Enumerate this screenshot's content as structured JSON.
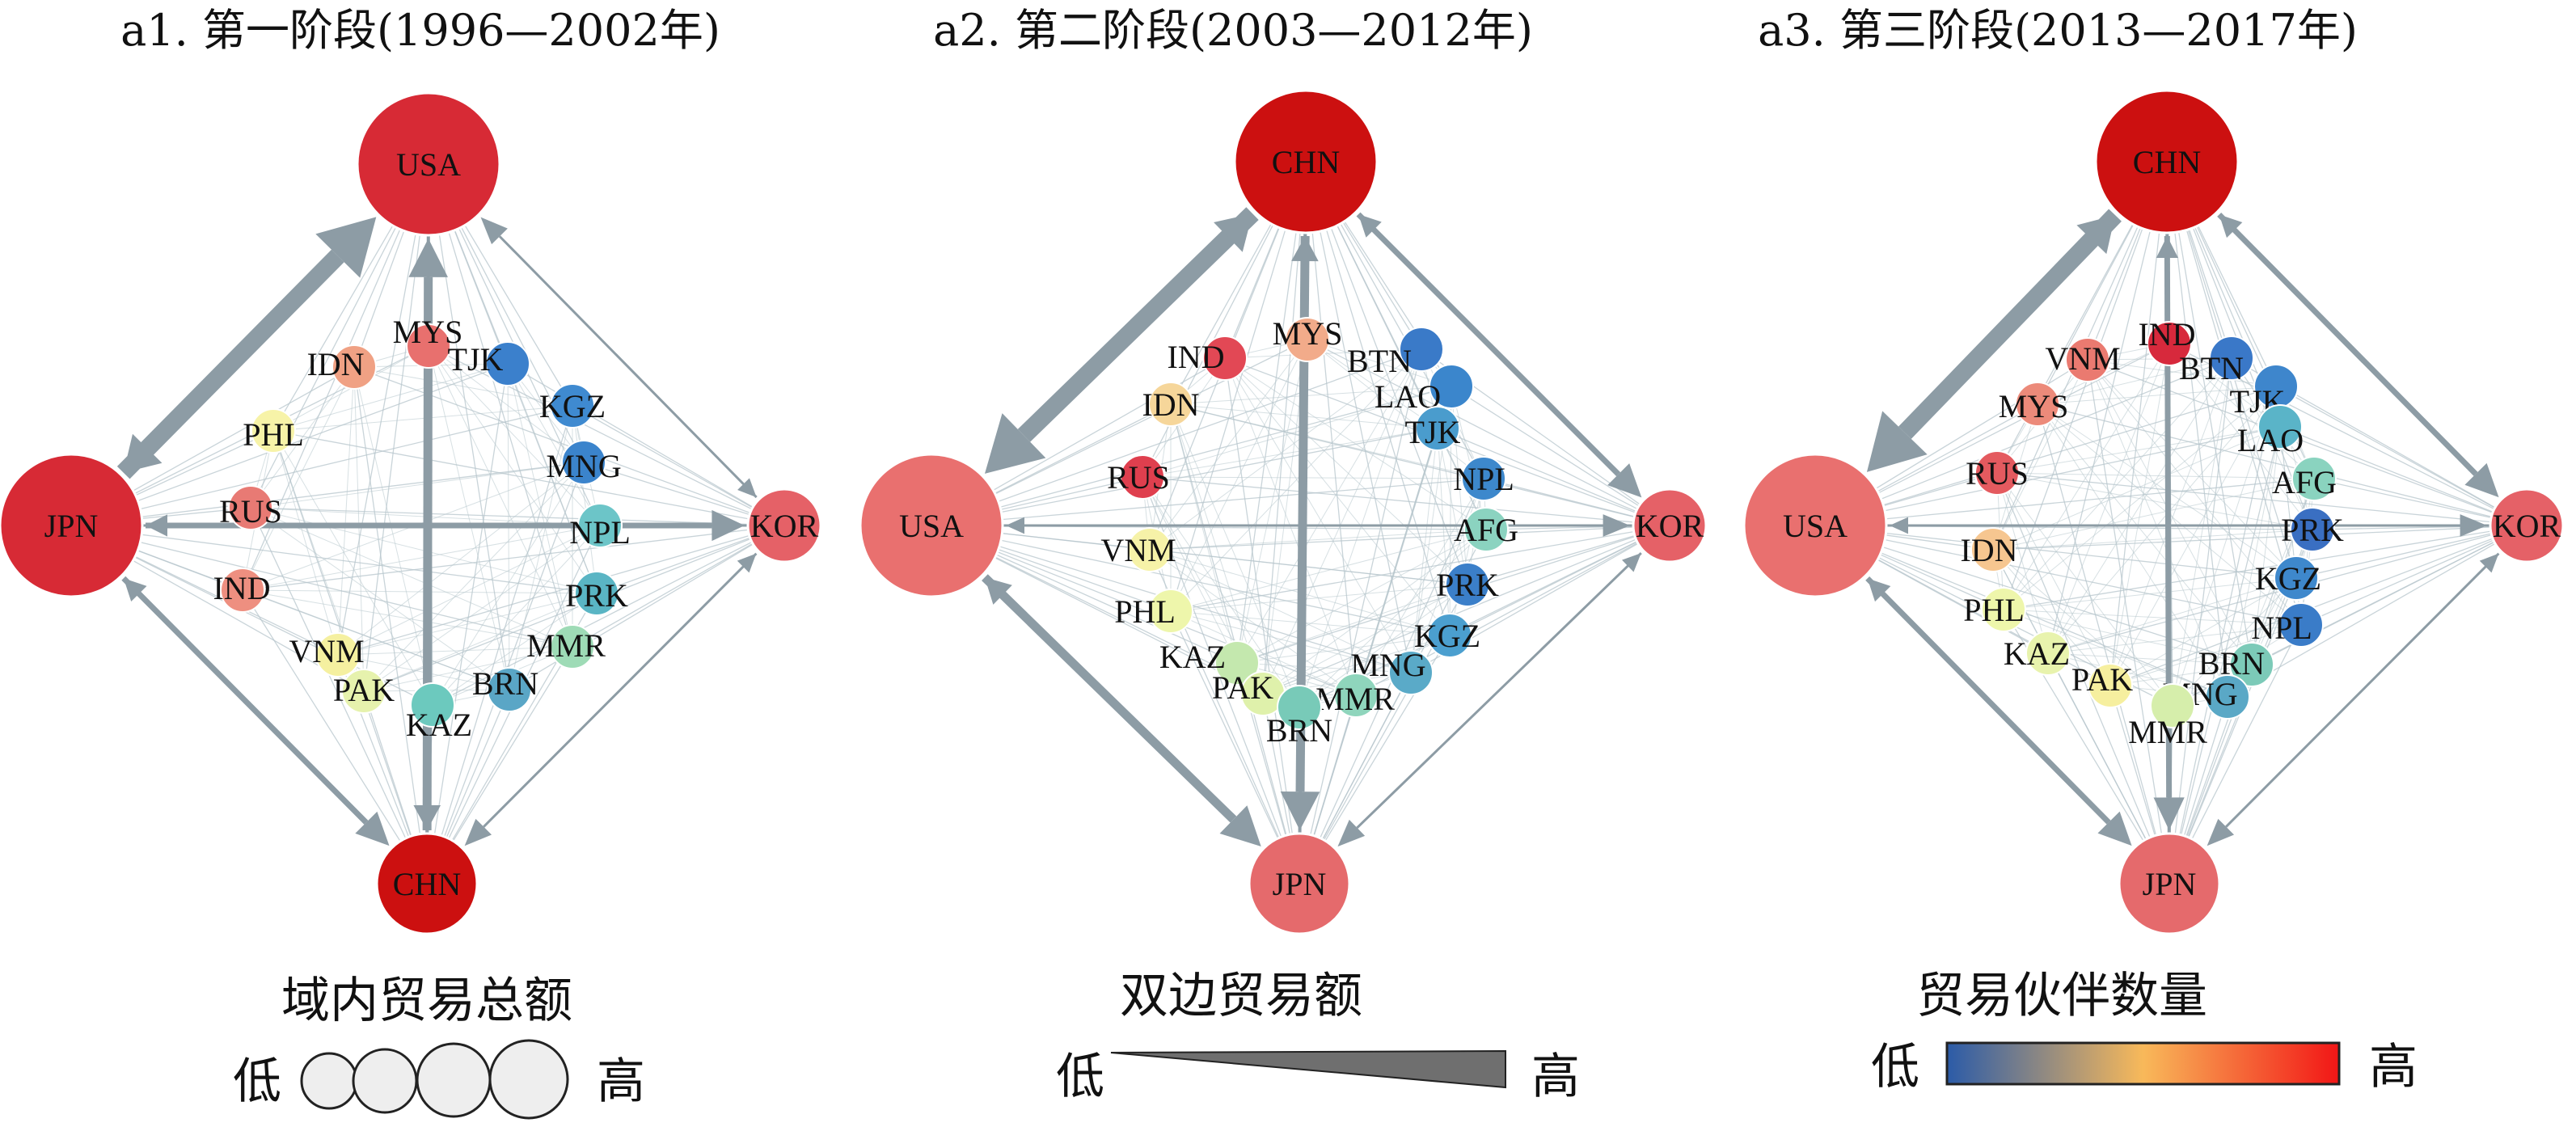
{
  "panels": [
    {
      "title": "a1. 第一阶段(1996—2002年)",
      "corners": [
        {
          "code": "USA",
          "pos": "top",
          "color": "#d72a35",
          "size": 4
        },
        {
          "code": "JPN",
          "pos": "left",
          "color": "#d72a35",
          "size": 4
        },
        {
          "code": "KOR",
          "pos": "right",
          "color": "#e56167",
          "size": 2
        },
        {
          "code": "CHN",
          "pos": "bottom",
          "color": "#cc1010",
          "size": 3
        }
      ],
      "arrows": [
        {
          "from": "JPN",
          "to": "USA",
          "weight": 5
        },
        {
          "from": "CHN",
          "to": "USA",
          "weight": 3
        },
        {
          "from": "JPN",
          "to": "CHN",
          "weight": 2
        },
        {
          "from": "JPN",
          "to": "KOR",
          "weight": 2
        },
        {
          "from": "KOR",
          "to": "USA",
          "weight": 1
        },
        {
          "from": "KOR",
          "to": "CHN",
          "weight": 1
        }
      ],
      "inner": [
        {
          "code": "MYS",
          "color": "#e8706e"
        },
        {
          "code": "IDN",
          "color": "#f0a184"
        },
        {
          "code": "TJK",
          "color": "#3b80cc"
        },
        {
          "code": "PHL",
          "color": "#f7f3a8"
        },
        {
          "code": "KGZ",
          "color": "#3f8ad0"
        },
        {
          "code": "MNG",
          "color": "#3b84cc"
        },
        {
          "code": "RUS",
          "color": "#e87a74"
        },
        {
          "code": "NPL",
          "color": "#6cc5c8"
        },
        {
          "code": "IND",
          "color": "#ee8f80"
        },
        {
          "code": "PRK",
          "color": "#5ab5c4"
        },
        {
          "code": "VNM",
          "color": "#f5f0a0"
        },
        {
          "code": "MMR",
          "color": "#9edbb6"
        },
        {
          "code": "PAK",
          "color": "#e6f2ad"
        },
        {
          "code": "BRN",
          "color": "#5aa6c6"
        },
        {
          "code": "KAZ",
          "color": "#6cc9be"
        }
      ]
    },
    {
      "title": "a2. 第二阶段(2003—2012年)",
      "corners": [
        {
          "code": "CHN",
          "pos": "top",
          "color": "#cc1010",
          "size": 4
        },
        {
          "code": "USA",
          "pos": "left",
          "color": "#e9706f",
          "size": 4
        },
        {
          "code": "KOR",
          "pos": "right",
          "color": "#e56167",
          "size": 2
        },
        {
          "code": "JPN",
          "pos": "bottom",
          "color": "#e56a6c",
          "size": 3
        }
      ],
      "arrows": [
        {
          "from": "CHN",
          "to": "USA",
          "weight": 5
        },
        {
          "from": "CHN",
          "to": "JPN",
          "weight": 3
        },
        {
          "from": "USA",
          "to": "JPN",
          "weight": 3
        },
        {
          "from": "CHN",
          "to": "KOR",
          "weight": 2
        },
        {
          "from": "USA",
          "to": "KOR",
          "weight": 1
        },
        {
          "from": "KOR",
          "to": "JPN",
          "weight": 1
        }
      ],
      "inner": [
        {
          "code": "MYS",
          "color": "#f2ab8a"
        },
        {
          "code": "IND",
          "color": "#e24855"
        },
        {
          "code": "BTN",
          "color": "#3a7ac8"
        },
        {
          "code": "LAO",
          "color": "#3b86cc"
        },
        {
          "code": "IDN",
          "color": "#f6d69a"
        },
        {
          "code": "TJK",
          "color": "#4a9ccd"
        },
        {
          "code": "RUS",
          "color": "#df3f4e"
        },
        {
          "code": "NPL",
          "color": "#3d88cc"
        },
        {
          "code": "AFG",
          "color": "#8bd3c0"
        },
        {
          "code": "VNM",
          "color": "#f6f2a8"
        },
        {
          "code": "PRK",
          "color": "#3b7fc9"
        },
        {
          "code": "PHL",
          "color": "#eef6ab"
        },
        {
          "code": "KGZ",
          "color": "#4b9fcf"
        },
        {
          "code": "KAZ",
          "color": "#c4e8ae"
        },
        {
          "code": "MNG",
          "color": "#5aaac8"
        },
        {
          "code": "PAK",
          "color": "#dff1ab"
        },
        {
          "code": "MMR",
          "color": "#8fd5bc"
        },
        {
          "code": "BRN",
          "color": "#78cab8"
        }
      ]
    },
    {
      "title": "a3. 第三阶段(2013—2017年)",
      "corners": [
        {
          "code": "CHN",
          "pos": "top",
          "color": "#cc1010",
          "size": 4
        },
        {
          "code": "USA",
          "pos": "left",
          "color": "#e9706f",
          "size": 4
        },
        {
          "code": "KOR",
          "pos": "right",
          "color": "#e56167",
          "size": 2
        },
        {
          "code": "JPN",
          "pos": "bottom",
          "color": "#e56a6c",
          "size": 3
        }
      ],
      "arrows": [
        {
          "from": "CHN",
          "to": "USA",
          "weight": 5
        },
        {
          "from": "CHN",
          "to": "JPN",
          "weight": 2
        },
        {
          "from": "USA",
          "to": "JPN",
          "weight": 2
        },
        {
          "from": "CHN",
          "to": "KOR",
          "weight": 2
        },
        {
          "from": "USA",
          "to": "KOR",
          "weight": 1
        },
        {
          "from": "KOR",
          "to": "JPN",
          "weight": 1
        }
      ],
      "inner": [
        {
          "code": "IND",
          "color": "#d7293c"
        },
        {
          "code": "VNM",
          "color": "#ea7a70"
        },
        {
          "code": "BTN",
          "color": "#3a78c8"
        },
        {
          "code": "MYS",
          "color": "#ec8a7a"
        },
        {
          "code": "TJK",
          "color": "#3e86cc"
        },
        {
          "code": "LAO",
          "color": "#5ab4c8"
        },
        {
          "code": "RUS",
          "color": "#e45a5f"
        },
        {
          "code": "AFG",
          "color": "#8ad3bf"
        },
        {
          "code": "IDN",
          "color": "#f6c690"
        },
        {
          "code": "PRK",
          "color": "#3a6fc2"
        },
        {
          "code": "KGZ",
          "color": "#3e88cc"
        },
        {
          "code": "PHL",
          "color": "#eef6ab"
        },
        {
          "code": "NPL",
          "color": "#3a7cc8"
        },
        {
          "code": "KAZ",
          "color": "#e8f3ad"
        },
        {
          "code": "BRN",
          "color": "#7ccab8"
        },
        {
          "code": "PAK",
          "color": "#f6ef9f"
        },
        {
          "code": "MNG",
          "color": "#5aa8c6"
        },
        {
          "code": "MMR",
          "color": "#d6eeab"
        }
      ]
    }
  ],
  "legends": {
    "size": {
      "title": "域内贸易总额",
      "low": "低",
      "high": "高"
    },
    "weight": {
      "title": "双边贸易额",
      "low": "低",
      "high": "高"
    },
    "color": {
      "title": "贸易伙伴数量",
      "low": "低",
      "high": "高",
      "stops": [
        "#2b5ba8",
        "#f8b95a",
        "#f21616"
      ]
    }
  },
  "styles": {
    "edge_color": "#8d9ca5",
    "thin_edge_color": "#b7c6cc",
    "node_stroke": "#ffffff"
  }
}
